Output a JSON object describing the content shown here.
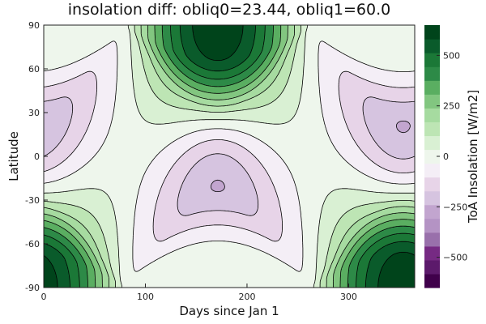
{
  "chart_data": {
    "type": "contour",
    "title": "insolation diff: obliq0=23.44, obliq1=60.0",
    "xlabel": "Days since Jan 1",
    "ylabel": "Latitude",
    "xlim": [
      0,
      365
    ],
    "ylim": [
      -90,
      90
    ],
    "x_ticks": [
      0,
      100,
      200,
      300
    ],
    "y_ticks": [
      -90,
      -60,
      -30,
      0,
      30,
      60,
      90
    ],
    "x_tick_labels": [
      "0",
      "100",
      "200",
      "300"
    ],
    "y_tick_labels": [
      "-90",
      "-60",
      "-30",
      "0",
      "30",
      "60",
      "90"
    ],
    "grid": false,
    "colorbar": {
      "label": "ToA Insolation [W/m2]",
      "range": [
        -650,
        650
      ],
      "level_step": 100,
      "ticks": [
        -500,
        -250,
        0,
        250,
        500
      ],
      "tick_labels": [
        "−500",
        "−250",
        "0",
        "250",
        "500"
      ],
      "colors": [
        "#40004b",
        "#5c1a6b",
        "#762a83",
        "#9970ab",
        "#b493c4",
        "#c2a5cf",
        "#d6c4e0",
        "#e7d4e8",
        "#f4eef6",
        "#eef6ec",
        "#d9f0d3",
        "#bde5b4",
        "#a6dba0",
        "#82c680",
        "#5aae61",
        "#2d8a47",
        "#1b7837",
        "#0a5b2b",
        "#00441b"
      ]
    },
    "features": [
      {
        "kind": "summer-max",
        "sign": "positive",
        "season_days": [
          76,
          264
        ],
        "peak_day": 172,
        "peak_latitude": 90
      },
      {
        "kind": "southern-summer-max",
        "sign": "positive",
        "peak_day": 355,
        "peak_latitude": -90
      },
      {
        "kind": "northern-winter-min",
        "sign": "negative",
        "peak_day": 355,
        "peak_latitude": 20
      },
      {
        "kind": "southern-winter-min",
        "sign": "negative",
        "peak_day": 172,
        "peak_latitude": -20
      }
    ]
  }
}
